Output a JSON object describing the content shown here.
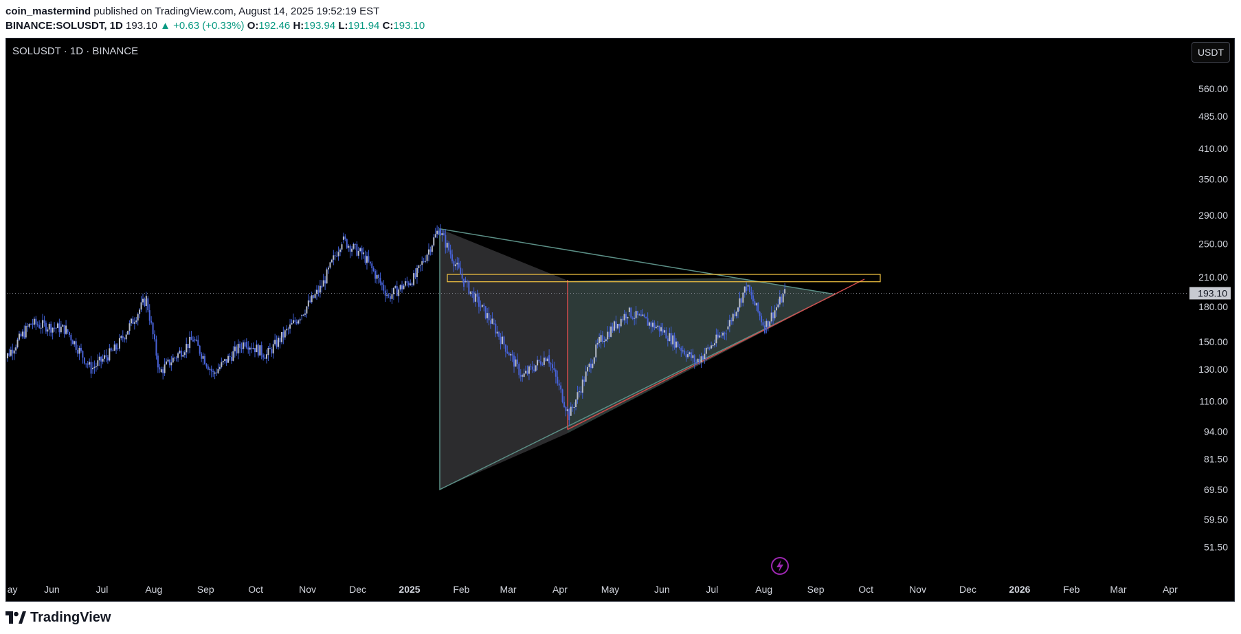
{
  "header": {
    "author": "coin_mastermind",
    "published": "published on TradingView.com, August 14, 2025 19:52:19 EST",
    "symbol": "BINANCE:SOLUSDT, 1D",
    "last": "193.10",
    "change": "+0.63 (+0.33%)",
    "o_label": "O:",
    "o": "192.46",
    "h_label": "H:",
    "h": "193.94",
    "l_label": "L:",
    "l": "191.94",
    "c_label": "C:",
    "c": "193.10"
  },
  "chart": {
    "symbol_label": "SOLUSDT · 1D · BINANCE",
    "currency": "USDT",
    "brand": "TradingView",
    "colors": {
      "background": "#000000",
      "candle": "#b7bcc9",
      "candle_wick": "#3f5fd6",
      "triangle_fill": "#2f3d3b",
      "triangle_stroke": "#5b8f86",
      "left_triangle_fill": "#2e2e30",
      "support_line": "#d24b4b",
      "resistance_box": "#f5c542",
      "price_label": "#c7cad1",
      "flash_icon": "#9c27b0"
    }
  },
  "chart_data": {
    "type": "candlestick",
    "symbol": "BINANCE:SOLUSDT",
    "interval": "1D",
    "current_price": 193.1,
    "y_scale": "log",
    "ylim": [
      45,
      640
    ],
    "y_ticks": [
      "560.00",
      "485.00",
      "410.00",
      "350.00",
      "290.00",
      "250.00",
      "210.00",
      "180.00",
      "150.00",
      "130.00",
      "110.00",
      "94.00",
      "81.50",
      "69.50",
      "59.50",
      "51.50"
    ],
    "x_ticks": [
      "ay",
      "Jun",
      "Jul",
      "Aug",
      "Sep",
      "Oct",
      "Nov",
      "Dec",
      "2025",
      "Feb",
      "Mar",
      "Apr",
      "May",
      "Jun",
      "Jul",
      "Aug",
      "Sep",
      "Oct",
      "Nov",
      "Dec",
      "2026",
      "Feb",
      "Mar",
      "Apr"
    ],
    "x_ticks_bold": [
      "2025",
      "2026"
    ],
    "price_series_approx": [
      [
        "2024-05-01",
        132
      ],
      [
        "2024-05-20",
        165
      ],
      [
        "2024-06-10",
        160
      ],
      [
        "2024-06-25",
        130
      ],
      [
        "2024-07-10",
        145
      ],
      [
        "2024-07-28",
        188
      ],
      [
        "2024-08-05",
        128
      ],
      [
        "2024-08-25",
        152
      ],
      [
        "2024-09-06",
        127
      ],
      [
        "2024-09-25",
        150
      ],
      [
        "2024-10-08",
        140
      ],
      [
        "2024-10-28",
        172
      ],
      [
        "2024-11-10",
        200
      ],
      [
        "2024-11-22",
        255
      ],
      [
        "2024-12-05",
        235
      ],
      [
        "2024-12-20",
        190
      ],
      [
        "2025-01-05",
        210
      ],
      [
        "2025-01-19",
        270
      ],
      [
        "2025-02-03",
        205
      ],
      [
        "2025-02-20",
        165
      ],
      [
        "2025-03-10",
        125
      ],
      [
        "2025-03-25",
        140
      ],
      [
        "2025-04-07",
        102
      ],
      [
        "2025-04-25",
        150
      ],
      [
        "2025-05-12",
        175
      ],
      [
        "2025-06-01",
        160
      ],
      [
        "2025-06-22",
        135
      ],
      [
        "2025-07-10",
        160
      ],
      [
        "2025-07-22",
        200
      ],
      [
        "2025-08-02",
        162
      ],
      [
        "2025-08-14",
        193.1
      ]
    ],
    "drawings": {
      "symmetrical_triangle": {
        "apex_approx": "2025-09-10",
        "upper_start": 270,
        "lower_start": 69.5
      },
      "support_line": {
        "from": [
          "2025-04-07",
          95
        ],
        "to": [
          "2025-10-15",
          205
        ]
      },
      "resistance_zone": {
        "low": 205,
        "high": 213,
        "from": "2025-01-25",
        "to": "2025-10-20"
      }
    }
  }
}
